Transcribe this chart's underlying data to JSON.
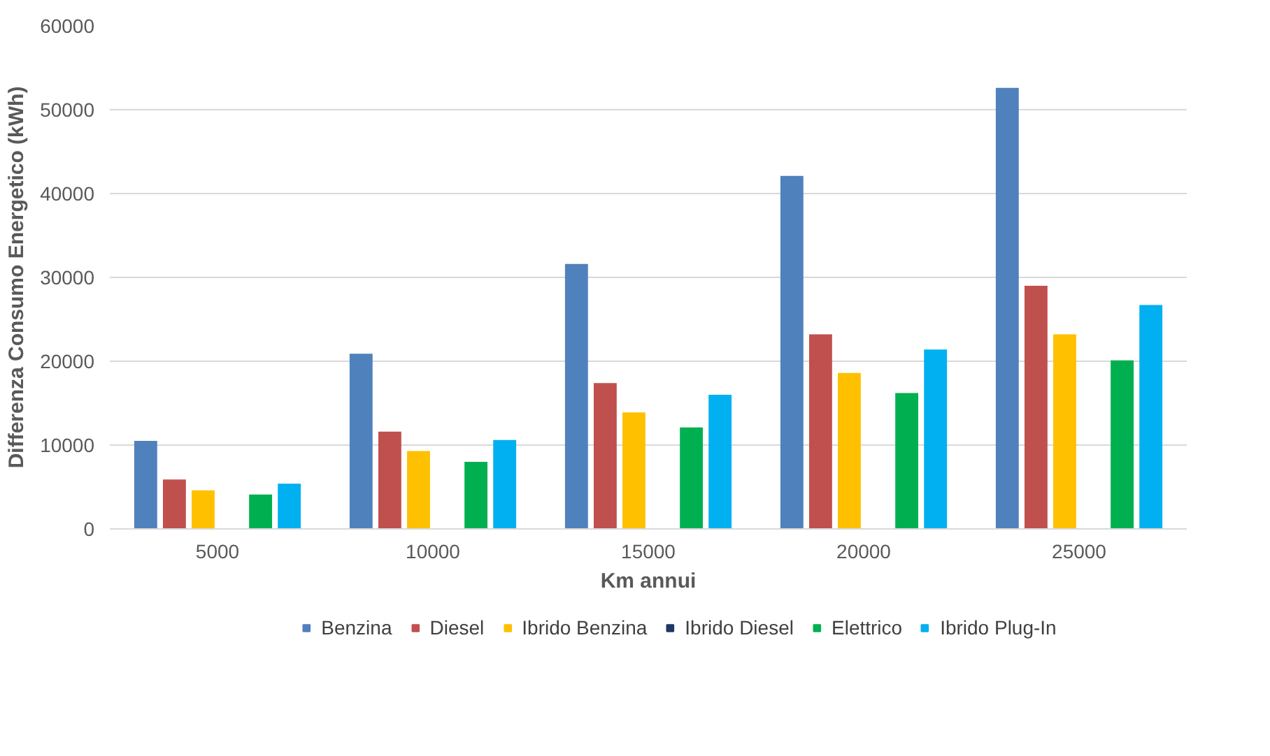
{
  "chart_data": {
    "type": "bar",
    "xlabel": "Km annui",
    "ylabel": "Differenza Consumo Energetico (kWh)",
    "categories": [
      "5000",
      "10000",
      "15000",
      "20000",
      "25000"
    ],
    "series": [
      {
        "name": "Benzina",
        "color": "#4f81bd",
        "values": [
          10500,
          20900,
          31600,
          42100,
          52600
        ]
      },
      {
        "name": "Diesel",
        "color": "#c0504d",
        "values": [
          5900,
          11600,
          17400,
          23200,
          29000
        ]
      },
      {
        "name": "Ibrido Benzina",
        "color": "#ffc000",
        "values": [
          4600,
          9300,
          13900,
          18600,
          23200
        ]
      },
      {
        "name": "Ibrido Diesel",
        "color": "#1f3864",
        "values": [
          null,
          null,
          null,
          null,
          null
        ]
      },
      {
        "name": "Elettrico",
        "color": "#00b050",
        "values": [
          4100,
          8000,
          12100,
          16200,
          20100
        ]
      },
      {
        "name": "Ibrido Plug-In",
        "color": "#00b0f0",
        "values": [
          5400,
          10600,
          16000,
          21400,
          26700
        ]
      }
    ],
    "ylim": [
      0,
      60000
    ],
    "yticks": [
      0,
      10000,
      20000,
      30000,
      40000,
      50000,
      60000
    ],
    "grid": "y",
    "legend": "bottom"
  }
}
